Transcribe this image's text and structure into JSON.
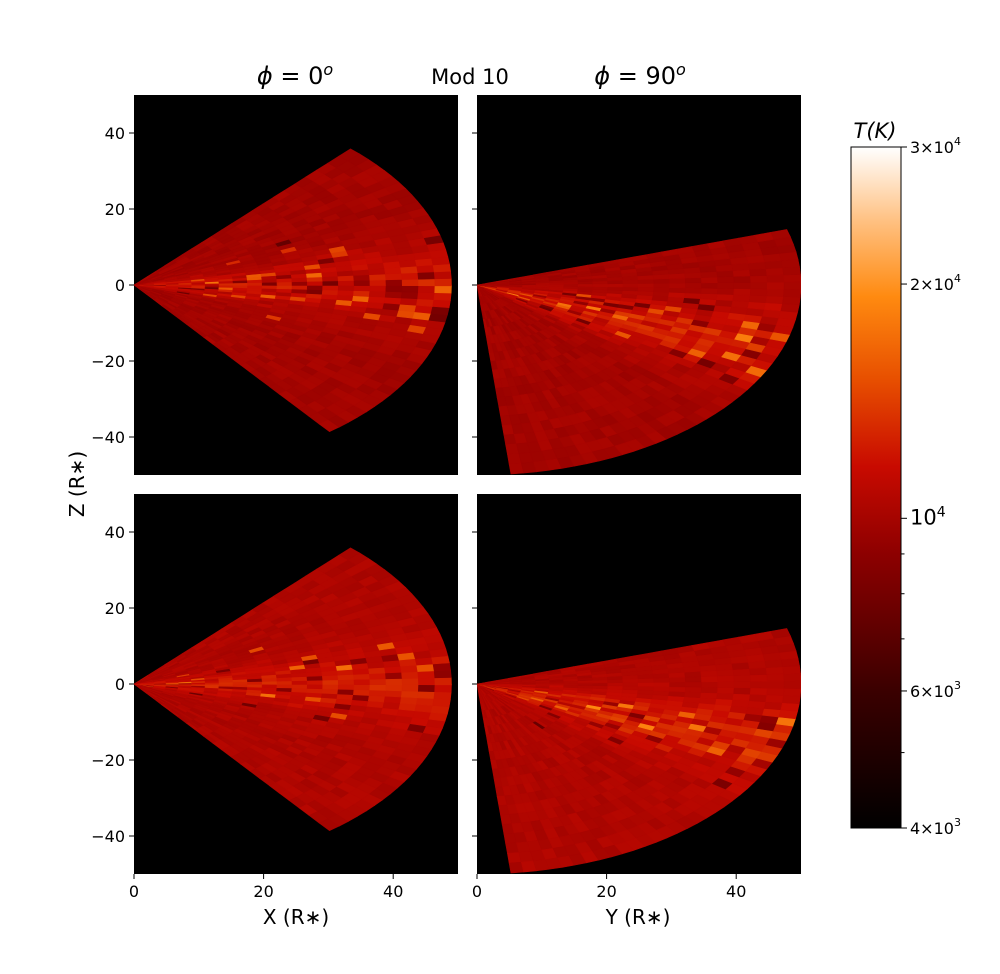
{
  "chart_data": {
    "type": "heatmap",
    "figure_title": "Mod 10",
    "column_titles": [
      {
        "phi": "ϕ",
        "eq": " = ",
        "val": "0",
        "sup": "o"
      },
      {
        "phi": "ϕ",
        "eq": " = ",
        "val": "90",
        "sup": "o"
      }
    ],
    "xlabels": [
      "X (R∗)",
      "Y (R∗)"
    ],
    "ylabel": "Z (R∗)",
    "xlim": [
      0,
      50
    ],
    "ylim": [
      -50,
      50
    ],
    "xticks": [
      0,
      20,
      40
    ],
    "xtick_labels": [
      "0",
      "20",
      "40"
    ],
    "yticks": [
      40,
      20,
      0,
      -20,
      -40
    ],
    "ytick_labels": [
      "40",
      "20",
      "0",
      "−20",
      "−40"
    ],
    "background_color": "#000000",
    "colorbar": {
      "title": "T(K)",
      "scale": "log",
      "range": [
        4000,
        30000
      ],
      "ticks": [
        {
          "value": 30000,
          "mantissa": "3",
          "exp": "4",
          "size": "small"
        },
        {
          "value": 20000,
          "mantissa": "2",
          "exp": "4",
          "size": "small"
        },
        {
          "value": 10000,
          "mantissa": "",
          "exp": "4",
          "size": "big"
        },
        {
          "value": 6000,
          "mantissa": "6",
          "exp": "3",
          "size": "small"
        },
        {
          "value": 4000,
          "mantissa": "4",
          "exp": "3",
          "size": "small"
        }
      ],
      "minor_ticks": [
        5000,
        7000,
        8000,
        9000
      ],
      "colormap": "gist_heat"
    },
    "panels": [
      {
        "name": "phi0-top",
        "view": "x",
        "theta_deg": [
          -52,
          47
        ],
        "r_max": 49,
        "base_temp": 10000,
        "equatorial_temp": 12000
      },
      {
        "name": "phi90-top",
        "view": "y",
        "theta_deg": [
          -84,
          17
        ],
        "r_max": 50,
        "base_temp": 10000,
        "equatorial_temp": 12500
      },
      {
        "name": "phi0-bottom",
        "view": "x",
        "theta_deg": [
          -52,
          47
        ],
        "r_max": 49,
        "base_temp": 10500,
        "equatorial_temp": 12500
      },
      {
        "name": "phi90-bottom",
        "view": "y",
        "theta_deg": [
          -84,
          17
        ],
        "r_max": 50,
        "base_temp": 10500,
        "equatorial_temp": 13000
      }
    ]
  }
}
